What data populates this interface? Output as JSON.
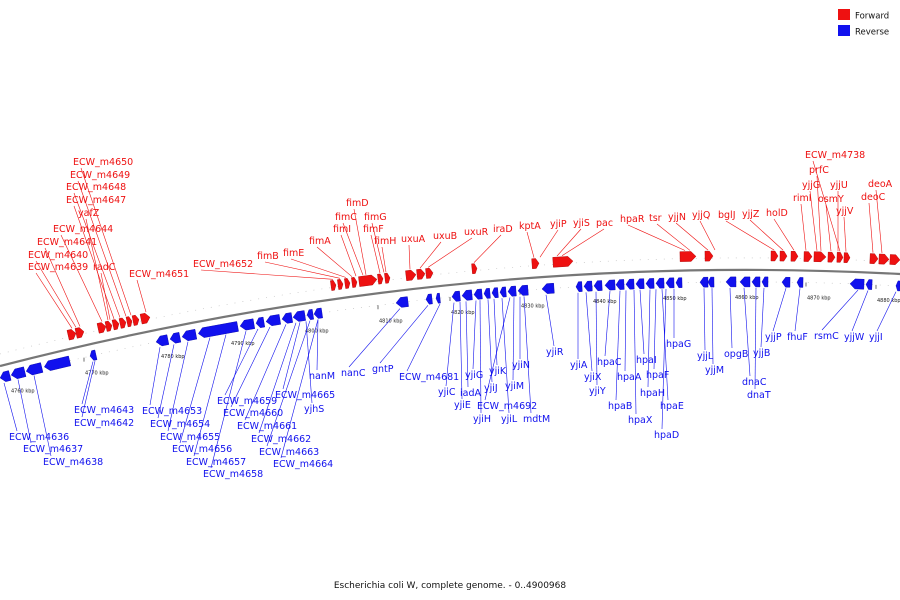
{
  "caption": "Escherichia coli W, complete genome. - 0..4900968",
  "legend": [
    {
      "label": "Forward",
      "color": "#ee1111"
    },
    {
      "label": "Reverse",
      "color": "#1111ee"
    }
  ],
  "colors": {
    "forward": "#ee1111",
    "reverse": "#1111ee",
    "backbone": "#777777"
  },
  "ticks": [
    "4760 kbp",
    "4770 kbp",
    "4780 kbp",
    "4790 kbp",
    "4800 kbp",
    "4810 kbp",
    "4820 kbp",
    "4830 kbp",
    "4840 kbp",
    "4850 kbp",
    "4860 kbp",
    "4870 kbp",
    "4880 kbp"
  ],
  "forward_genes": [
    "ECW_m4639",
    "ECW_m4640",
    "ECW_m4641",
    "ECW_m4644",
    "yafZ",
    "ECW_m4647",
    "ECW_m4648",
    "ECW_m4649",
    "ECW_m4650",
    "radC",
    "ECW_m4651",
    "ECW_m4652",
    "fimB",
    "fimE",
    "fimA",
    "fimI",
    "fimC",
    "fimD",
    "fimF",
    "fimG",
    "fimH",
    "uxuA",
    "uxuB",
    "uxuR",
    "iraD",
    "kptA",
    "yjiP",
    "yjiS",
    "pac",
    "hpaR",
    "tsr",
    "yjjN",
    "yjjQ",
    "bglJ",
    "yjjZ",
    "holD",
    "rimI",
    "yjjG",
    "prfC",
    "osmY",
    "yjjU",
    "ECW_m4738",
    "yjjV",
    "deoC",
    "deoA"
  ],
  "reverse_genes": [
    "ECW_m4636",
    "ECW_m4637",
    "ECW_m4638",
    "ECW_m4643",
    "ECW_m4642",
    "ECW_m4653",
    "ECW_m4654",
    "ECW_m4655",
    "ECW_m4656",
    "ECW_m4657",
    "ECW_m4658",
    "ECW_m4659",
    "ECW_m4660",
    "ECW_m4661",
    "ECW_m4662",
    "ECW_m4663",
    "ECW_m4664",
    "ECW_m4665",
    "yjhS",
    "nanM",
    "nanC",
    "gntP",
    "ECW_m4681",
    "yjiC",
    "yjiE",
    "iadA",
    "yjiG",
    "yjiH",
    "yjiJ",
    "yjiK",
    "yjiL",
    "ECW_m4692",
    "yjiM",
    "yjiN",
    "mdtM",
    "yjiR",
    "yjiA",
    "yjiX",
    "yjiY",
    "hpaC",
    "hpaB",
    "hpaA",
    "hpaX",
    "hpaI",
    "hpaH",
    "hpaF",
    "hpaE",
    "hpaD",
    "hpaG",
    "yjjL",
    "yjjM",
    "opgB",
    "dnaC",
    "dnaT",
    "yjjB",
    "yjjP",
    "fhuF",
    "rsmC",
    "yjjW",
    "yjjI"
  ]
}
